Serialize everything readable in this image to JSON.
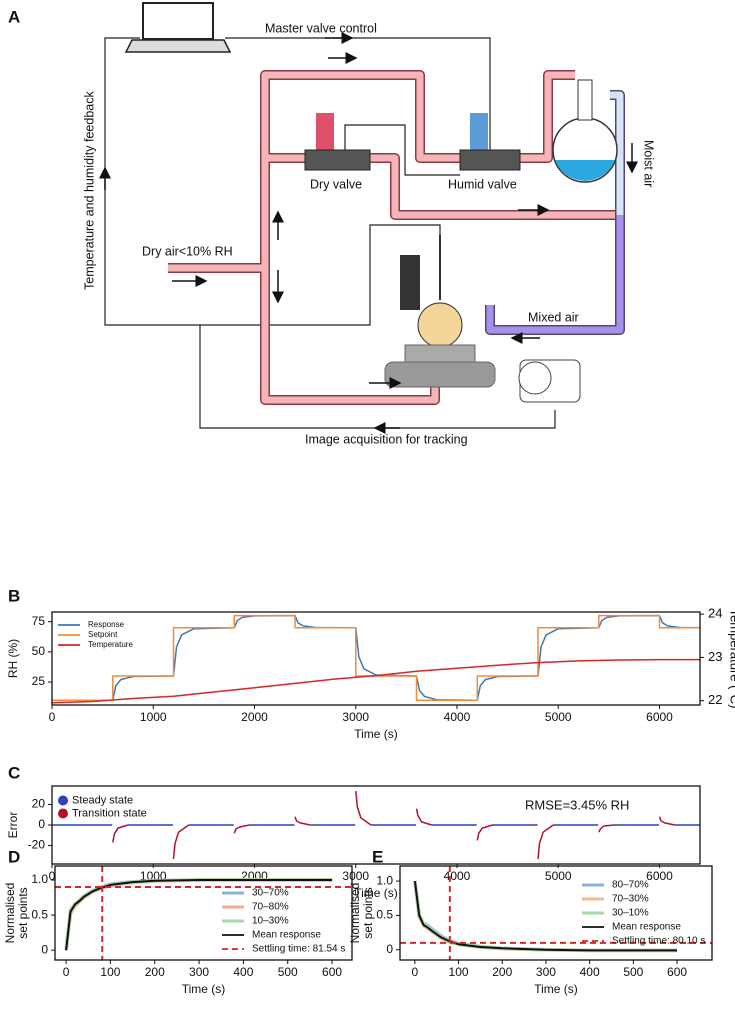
{
  "diagram": {
    "label": "A",
    "labels": {
      "master": "Master valve control",
      "feedback": "Temperature and humidity feedback",
      "dry_valve": "Dry valve",
      "humid_valve": "Humid valve",
      "moist_air": "Moist air",
      "dry_air": "Dry air<10% RH",
      "mixed_air": "Mixed air",
      "image": "Image acquisition for tracking"
    }
  },
  "chart_data": [
    {
      "type": "line",
      "label": "B",
      "xlabel": "Time (s)",
      "ylabel": "RH (%)",
      "y2label": "Temperature (°C)",
      "xlim": [
        0,
        6400
      ],
      "xticks": [
        0,
        1000,
        2000,
        3000,
        4000,
        5000,
        6000
      ],
      "ylim": [
        6,
        83
      ],
      "yticks": [
        25,
        50,
        75
      ],
      "y2lim": [
        21.9,
        24.05
      ],
      "y2ticks": [
        22,
        23,
        24
      ],
      "legend": "upper left",
      "series": [
        {
          "name": "Response",
          "color": "#3f78b5",
          "x": [
            0,
            600,
            630,
            680,
            800,
            1200,
            1230,
            1280,
            1400,
            1800,
            1830,
            1880,
            2000,
            2400,
            2430,
            2480,
            2600,
            3000,
            3030,
            3080,
            3200,
            3600,
            3630,
            3680,
            3800,
            4200,
            4230,
            4280,
            4400,
            4800,
            4830,
            4880,
            5000,
            5400,
            5430,
            5480,
            5600,
            6000,
            6030,
            6080,
            6200,
            6400
          ],
          "values": [
            10,
            10,
            22,
            27,
            29.6,
            30,
            54,
            64,
            69.2,
            70,
            76,
            78.5,
            79.8,
            80,
            74,
            71.5,
            70.2,
            70,
            46,
            36,
            30.8,
            30,
            18,
            13,
            10.4,
            10,
            22,
            27,
            29.6,
            30,
            54,
            64,
            69.2,
            70,
            76,
            78.5,
            79.8,
            80,
            74,
            71.5,
            70.2,
            70
          ]
        },
        {
          "name": "Setpoint",
          "color": "#f28c3c",
          "x": [
            0,
            600,
            600,
            1200,
            1200,
            1800,
            1800,
            2400,
            2400,
            3000,
            3000,
            3600,
            3600,
            4200,
            4200,
            4800,
            4800,
            5400,
            5400,
            6000,
            6000,
            6400
          ],
          "values": [
            10,
            10,
            30,
            30,
            70,
            70,
            80,
            80,
            70,
            70,
            30,
            30,
            10,
            10,
            30,
            30,
            70,
            70,
            80,
            80,
            70,
            70
          ]
        },
        {
          "name": "Temperature",
          "color": "#d62728",
          "axis": "y2",
          "x": [
            0,
            400,
            800,
            1200,
            1600,
            2000,
            2400,
            2800,
            3200,
            3600,
            4000,
            4400,
            4800,
            5200,
            5600,
            6000,
            6400
          ],
          "values": [
            21.95,
            21.98,
            22.05,
            22.1,
            22.2,
            22.3,
            22.4,
            22.5,
            22.58,
            22.68,
            22.75,
            22.82,
            22.88,
            22.92,
            22.94,
            22.95,
            22.95
          ]
        }
      ]
    },
    {
      "type": "line",
      "label": "C",
      "xlabel": "Time (s)",
      "ylabel": "Error",
      "annotation": "RMSE=3.45% RH",
      "xlim": [
        0,
        6400
      ],
      "xticks": [
        0,
        1000,
        2000,
        3000,
        4000,
        5000,
        6000
      ],
      "ylim": [
        -38,
        38
      ],
      "yticks": [
        -20,
        0,
        20
      ],
      "legend": "upper left",
      "legend_marker": "dot",
      "series": [
        {
          "name": "Steady state",
          "color": "#2e3fbf",
          "x": [
            0,
            595,
            595,
            750,
            1195,
            1195,
            1350,
            1795,
            1795,
            1950,
            2395,
            2395,
            2550,
            2995,
            2995,
            3150,
            3595,
            3595,
            3750,
            4195,
            4195,
            4350,
            4795,
            4795,
            4950,
            5395,
            5395,
            5550,
            5995,
            5995,
            6150,
            6400
          ],
          "values": [
            0,
            0,
            null,
            0,
            0,
            null,
            0,
            0,
            null,
            0,
            0,
            null,
            0,
            0,
            null,
            0,
            0,
            null,
            0,
            0,
            null,
            0,
            0,
            null,
            0,
            0,
            null,
            0,
            0,
            null,
            0,
            0
          ]
        },
        {
          "name": "Transition state",
          "color": "#b0122a",
          "x": [
            600,
            615,
            650,
            750,
            750,
            1200,
            1215,
            1250,
            1350,
            1350,
            1800,
            1815,
            1850,
            1950,
            1950,
            2400,
            2415,
            2450,
            2550,
            2550,
            3000,
            3015,
            3050,
            3150,
            3150,
            3600,
            3615,
            3650,
            3750,
            3750,
            4200,
            4215,
            4250,
            4350,
            4350,
            4800,
            4815,
            4850,
            4950,
            4950,
            5400,
            5415,
            5450,
            5550,
            5550,
            6000,
            6015,
            6050,
            6150
          ],
          "values": [
            -17,
            -9,
            -3,
            0,
            null,
            -33,
            -18,
            -7,
            0,
            null,
            -8,
            -4,
            -2,
            0,
            null,
            8,
            4,
            2,
            0,
            null,
            33,
            18,
            7,
            0,
            null,
            16,
            9,
            3,
            0,
            null,
            -15,
            -8,
            -3,
            0,
            null,
            -33,
            -18,
            -7,
            0,
            null,
            -7,
            -4,
            -1,
            0,
            null,
            8,
            4,
            2,
            0
          ]
        }
      ]
    },
    {
      "type": "line",
      "label": "D",
      "xlabel": "Time (s)",
      "ylabel": [
        "Normalised",
        "set points"
      ],
      "xlim": [
        -25,
        645
      ],
      "xticks": [
        0,
        100,
        200,
        300,
        400,
        500,
        600
      ],
      "ylim": [
        -0.14,
        1.2
      ],
      "yticks": [
        0,
        0.5,
        {
          "value": 1,
          "label": "1.0"
        }
      ],
      "legend": "lower right",
      "series": [
        {
          "name": "30–70%",
          "color": "#8fb0d8",
          "x": [
            0,
            10,
            20,
            30,
            40,
            60,
            80,
            100,
            150,
            200,
            300,
            400,
            500,
            600
          ],
          "values": [
            0,
            0.57,
            0.66,
            0.71,
            0.77,
            0.85,
            0.9,
            0.94,
            0.975,
            0.99,
            1,
            1,
            1,
            1
          ]
        },
        {
          "name": "70–80%",
          "color": "#f4ab8e",
          "x": [
            0,
            10,
            20,
            30,
            40,
            60,
            80,
            100,
            150,
            200,
            300,
            400,
            500,
            600
          ],
          "values": [
            0,
            0.52,
            0.63,
            0.69,
            0.75,
            0.83,
            0.88,
            0.92,
            0.965,
            0.985,
            1,
            1,
            1,
            1
          ]
        },
        {
          "name": "10–30%",
          "color": "#a6d9a6",
          "x": [
            0,
            10,
            20,
            30,
            40,
            60,
            80,
            100,
            150,
            200,
            300,
            400,
            500,
            600
          ],
          "values": [
            0,
            0.56,
            0.66,
            0.7,
            0.76,
            0.84,
            0.89,
            0.93,
            0.97,
            0.99,
            1,
            1,
            1,
            1
          ]
        },
        {
          "name": "Mean response",
          "color": "#111111",
          "x": [
            0,
            10,
            20,
            30,
            40,
            60,
            80,
            100,
            150,
            200,
            300,
            400,
            500,
            600
          ],
          "values": [
            0,
            0.55,
            0.65,
            0.7,
            0.76,
            0.84,
            0.89,
            0.93,
            0.97,
            0.99,
            1,
            1,
            1,
            1
          ]
        }
      ],
      "settling": {
        "name": "Settling time: 81.54 s",
        "color": "#d62728",
        "x": 81.54,
        "y": 0.9
      }
    },
    {
      "type": "line",
      "label": "E",
      "xlabel": "Time (s)",
      "ylabel": [
        "Normalised",
        "set points"
      ],
      "xlim": [
        -34,
        680
      ],
      "xticks": [
        0,
        100,
        200,
        300,
        400,
        500,
        600
      ],
      "ylim": [
        -0.15,
        1.22
      ],
      "yticks": [
        0,
        0.5,
        {
          "value": 1,
          "label": "1.0"
        }
      ],
      "legend": "upper right",
      "series": [
        {
          "name": "80–70%",
          "color": "#8fb0d8",
          "x": [
            0,
            10,
            20,
            30,
            40,
            60,
            80,
            100,
            150,
            200,
            300,
            400,
            500,
            600
          ],
          "values": [
            1,
            0.48,
            0.38,
            0.35,
            0.3,
            0.2,
            0.13,
            0.09,
            0.045,
            0.02,
            0,
            -0.01,
            -0.01,
            -0.01
          ]
        },
        {
          "name": "70–30%",
          "color": "#f4b98e",
          "x": [
            0,
            10,
            20,
            30,
            40,
            60,
            80,
            100,
            150,
            200,
            300,
            400,
            500,
            600
          ],
          "values": [
            1,
            0.5,
            0.35,
            0.31,
            0.26,
            0.17,
            0.11,
            0.075,
            0.035,
            0.015,
            0,
            -0.01,
            -0.01,
            -0.01
          ]
        },
        {
          "name": "30–10%",
          "color": "#a6d9a6",
          "x": [
            0,
            10,
            20,
            30,
            40,
            60,
            80,
            100,
            150,
            200,
            300,
            400,
            500,
            600
          ],
          "values": [
            1,
            0.52,
            0.37,
            0.33,
            0.28,
            0.18,
            0.12,
            0.08,
            0.04,
            0.02,
            0,
            -0.01,
            -0.01,
            -0.01
          ]
        },
        {
          "name": "Mean response",
          "color": "#111111",
          "x": [
            0,
            10,
            20,
            30,
            40,
            60,
            80,
            100,
            150,
            200,
            300,
            400,
            500,
            600
          ],
          "values": [
            1,
            0.5,
            0.36,
            0.32,
            0.27,
            0.18,
            0.12,
            0.08,
            0.04,
            0.02,
            0,
            -0.01,
            -0.01,
            -0.01
          ]
        }
      ],
      "settling": {
        "name": "Settling time: 80.10 s",
        "color": "#d62728",
        "x": 80.1,
        "y": 0.1
      }
    }
  ]
}
